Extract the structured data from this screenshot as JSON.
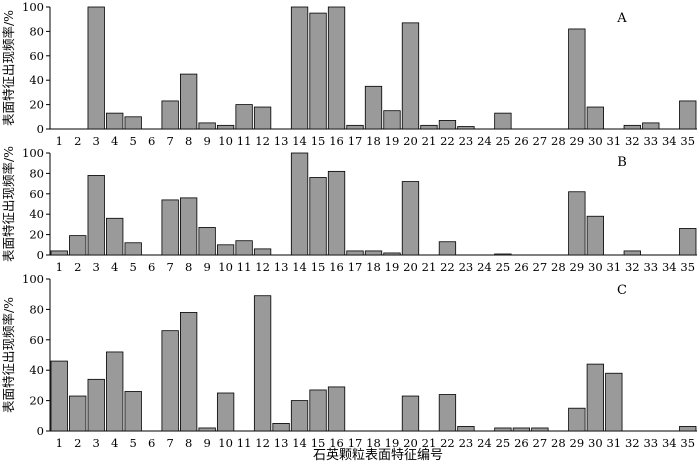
{
  "figure": {
    "xlabel": "石英颗粒表面特征编号",
    "ylabel": "表面特征出现频率/%"
  },
  "chart_data": [
    {
      "type": "bar",
      "panel": "A",
      "categories": [
        "1",
        "2",
        "3",
        "4",
        "5",
        "6",
        "7",
        "8",
        "9",
        "10",
        "11",
        "12",
        "13",
        "14",
        "15",
        "16",
        "17",
        "18",
        "19",
        "20",
        "21",
        "22",
        "23",
        "24",
        "25",
        "26",
        "27",
        "28",
        "29",
        "30",
        "31",
        "32",
        "33",
        "34",
        "35"
      ],
      "values": [
        0,
        0,
        100,
        13,
        10,
        0,
        23,
        45,
        5,
        3,
        20,
        18,
        0,
        100,
        95,
        100,
        3,
        35,
        15,
        87,
        3,
        7,
        2,
        0,
        13,
        0,
        0,
        0,
        82,
        18,
        0,
        3,
        5,
        0,
        23
      ],
      "ylim": [
        0,
        100
      ],
      "yticks": [
        0,
        20,
        40,
        60,
        80,
        100
      ],
      "ylabel": "表面特征出现频率/%"
    },
    {
      "type": "bar",
      "panel": "B",
      "categories": [
        "1",
        "2",
        "3",
        "4",
        "5",
        "6",
        "7",
        "8",
        "9",
        "10",
        "11",
        "12",
        "13",
        "14",
        "15",
        "16",
        "17",
        "18",
        "19",
        "20",
        "21",
        "22",
        "23",
        "24",
        "25",
        "26",
        "27",
        "28",
        "29",
        "30",
        "31",
        "32",
        "33",
        "34",
        "35"
      ],
      "values": [
        4,
        19,
        78,
        36,
        12,
        0,
        54,
        56,
        27,
        10,
        14,
        6,
        0,
        100,
        76,
        82,
        4,
        4,
        2,
        72,
        0,
        13,
        0,
        0,
        1,
        0,
        0,
        0,
        62,
        38,
        0,
        4,
        0,
        0,
        26
      ],
      "ylim": [
        0,
        100
      ],
      "yticks": [
        0,
        20,
        40,
        60,
        80,
        100
      ],
      "ylabel": "表面特征出现频率/%"
    },
    {
      "type": "bar",
      "panel": "C",
      "categories": [
        "1",
        "2",
        "3",
        "4",
        "5",
        "6",
        "7",
        "8",
        "9",
        "10",
        "11",
        "12",
        "13",
        "14",
        "15",
        "16",
        "17",
        "18",
        "19",
        "20",
        "21",
        "22",
        "23",
        "24",
        "25",
        "26",
        "27",
        "28",
        "29",
        "30",
        "31",
        "32",
        "33",
        "34",
        "35"
      ],
      "values": [
        46,
        23,
        34,
        52,
        26,
        0,
        66,
        78,
        2,
        25,
        0,
        89,
        5,
        20,
        27,
        29,
        0,
        0,
        0,
        23,
        0,
        24,
        3,
        0,
        2,
        2,
        2,
        0,
        15,
        44,
        38,
        0,
        0,
        0,
        3
      ],
      "ylim": [
        0,
        100
      ],
      "yticks": [
        0,
        20,
        40,
        60,
        80,
        100
      ],
      "ylabel": "表面特征出现频率/%",
      "xlabel": "石英颗粒表面特征编号"
    }
  ]
}
